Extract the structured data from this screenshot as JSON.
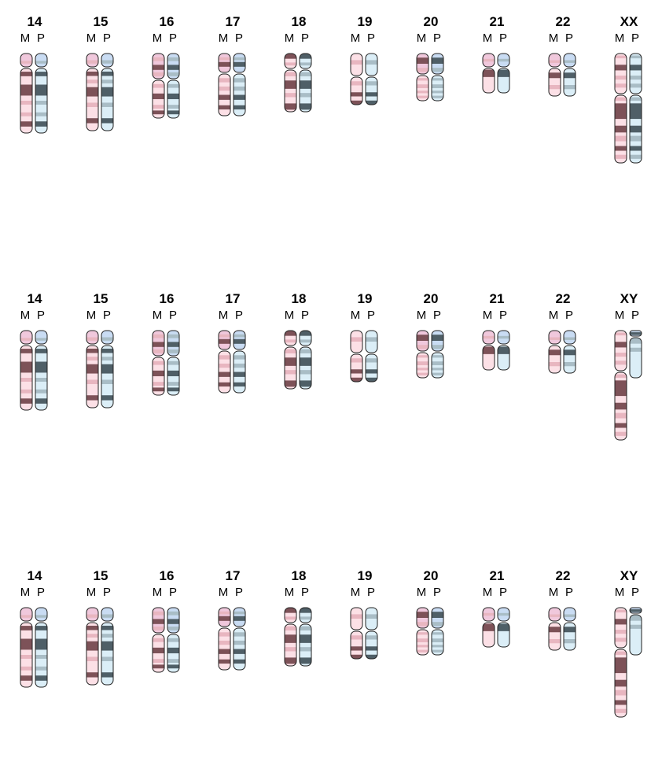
{
  "colors": {
    "maternal_light": "#fce0e6",
    "maternal_mid": "#e8b6c0",
    "maternal_dark": "#7d5258",
    "maternal_cap": "#f0c8dc",
    "paternal_light": "#dbeef7",
    "paternal_mid": "#a9bdc6",
    "paternal_dark": "#4f5f67",
    "paternal_cap": "#c9dcf3",
    "outline": "#222222"
  },
  "panels": [
    {
      "id": "panel-1",
      "chromosomes": [
        {
          "label": "14",
          "m": "M",
          "p": "P"
        },
        {
          "label": "15",
          "m": "M",
          "p": "P"
        },
        {
          "label": "16",
          "m": "M",
          "p": "P"
        },
        {
          "label": "17",
          "m": "M",
          "p": "P"
        },
        {
          "label": "18",
          "m": "M",
          "p": "P"
        },
        {
          "label": "19",
          "m": "M",
          "p": "P"
        },
        {
          "label": "20",
          "m": "M",
          "p": "P"
        },
        {
          "label": "21",
          "m": "M",
          "p": "P"
        },
        {
          "label": "22",
          "m": "M",
          "p": "P"
        },
        {
          "label": "XX",
          "m": "M",
          "p": "P"
        }
      ]
    },
    {
      "id": "panel-2",
      "chromosomes": [
        {
          "label": "14",
          "m": "M",
          "p": "P"
        },
        {
          "label": "15",
          "m": "M",
          "p": "P"
        },
        {
          "label": "16",
          "m": "M",
          "p": "P"
        },
        {
          "label": "17",
          "m": "M",
          "p": "P"
        },
        {
          "label": "18",
          "m": "M",
          "p": "P"
        },
        {
          "label": "19",
          "m": "M",
          "p": "P"
        },
        {
          "label": "20",
          "m": "M",
          "p": "P"
        },
        {
          "label": "21",
          "m": "M",
          "p": "P"
        },
        {
          "label": "22",
          "m": "M",
          "p": "P"
        },
        {
          "label": "XY",
          "m": "M",
          "p": "P"
        }
      ]
    },
    {
      "id": "panel-3",
      "chromosomes": [
        {
          "label": "14",
          "m": "M",
          "p": "P"
        },
        {
          "label": "15",
          "m": "M",
          "p": "P"
        },
        {
          "label": "16",
          "m": "M",
          "p": "P"
        },
        {
          "label": "17",
          "m": "M",
          "p": "P"
        },
        {
          "label": "18",
          "m": "M",
          "p": "P"
        },
        {
          "label": "19",
          "m": "M",
          "p": "P"
        },
        {
          "label": "20",
          "m": "M",
          "p": "P"
        },
        {
          "label": "21",
          "m": "M",
          "p": "P"
        },
        {
          "label": "22",
          "m": "M",
          "p": "P"
        },
        {
          "label": "XY",
          "m": "M",
          "p": "P"
        }
      ]
    }
  ]
}
